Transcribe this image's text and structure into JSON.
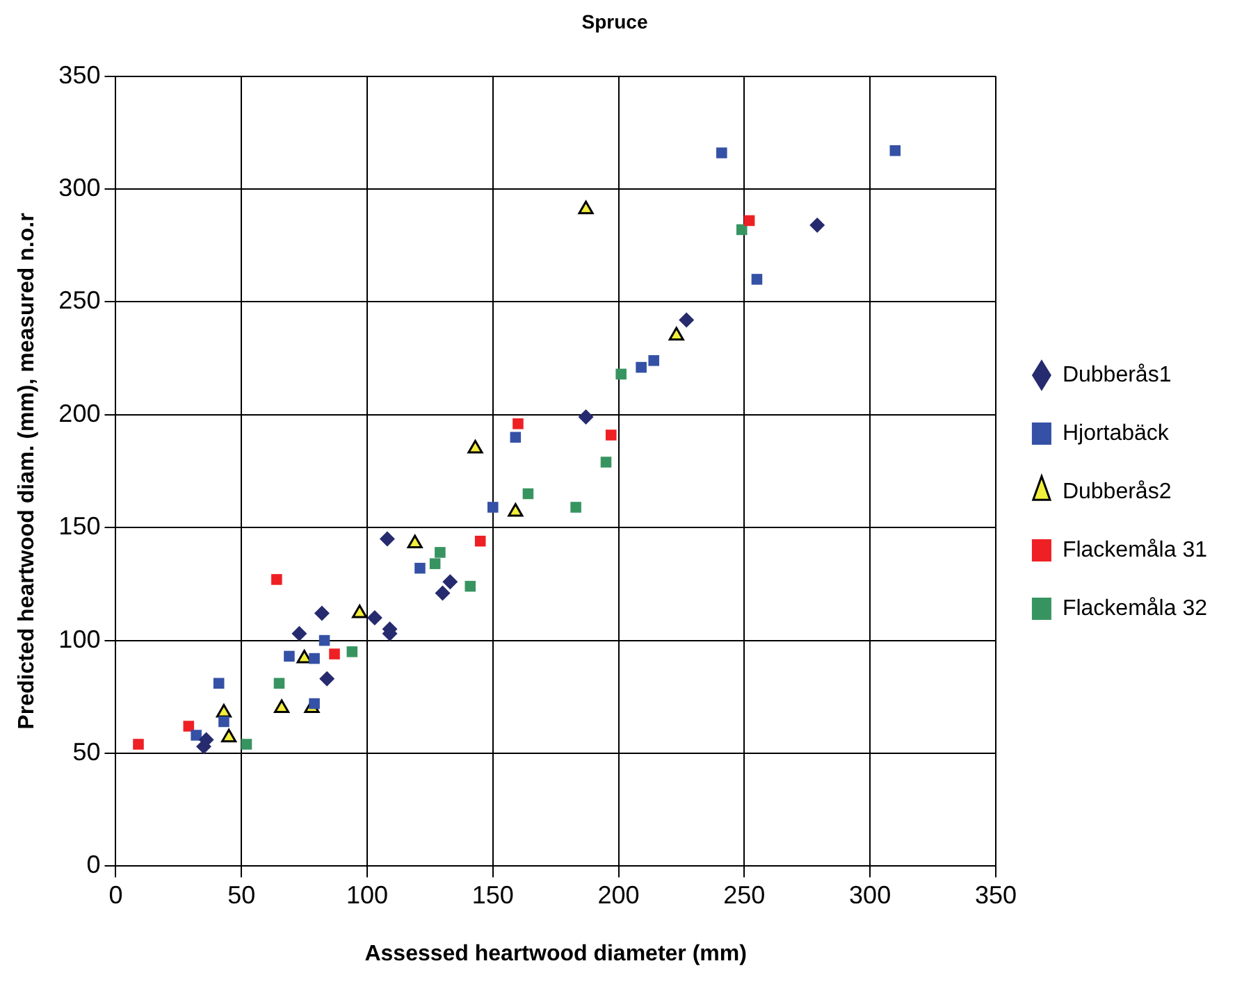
{
  "chart_data": {
    "type": "scatter",
    "title": "Spruce",
    "xlabel": "Assessed heartwood diameter (mm)",
    "ylabel": "Predicted heartwood diam. (mm), measured n.o.r",
    "xlim": [
      0,
      350
    ],
    "ylim": [
      0,
      350
    ],
    "xticks": [
      0,
      50,
      100,
      150,
      200,
      250,
      300,
      350
    ],
    "yticks": [
      0,
      50,
      100,
      150,
      200,
      250,
      300,
      350
    ],
    "grid": true,
    "legend": "right",
    "series": [
      {
        "name": "Dubberås1",
        "color": "#262a6e",
        "marker": "diamond",
        "x": [
          35,
          36,
          73,
          82,
          84,
          103,
          108,
          109,
          109,
          130,
          133,
          187,
          227,
          279
        ],
        "values": [
          53,
          56,
          103,
          112,
          83,
          110,
          145,
          105,
          103,
          121,
          126,
          199,
          242,
          284
        ]
      },
      {
        "name": "Hjortabäck",
        "color": "#3451a6",
        "marker": "square",
        "x": [
          32,
          41,
          43,
          69,
          79,
          79,
          83,
          121,
          150,
          159,
          209,
          214,
          241,
          255,
          310
        ],
        "values": [
          58,
          81,
          64,
          93,
          92,
          72,
          100,
          132,
          159,
          190,
          221,
          224,
          316,
          260,
          317
        ]
      },
      {
        "name": "Dubberås2",
        "color": "#f2ee3c",
        "marker": "triangle",
        "x": [
          43,
          45,
          66,
          75,
          78,
          97,
          119,
          143,
          159,
          187,
          223
        ],
        "values": [
          68,
          57,
          70,
          92,
          70,
          112,
          143,
          185,
          157,
          291,
          235
        ]
      },
      {
        "name": "Flackemåla 31",
        "color": "#ee2024",
        "marker": "square",
        "x": [
          9,
          29,
          64,
          87,
          145,
          160,
          197,
          252
        ],
        "values": [
          54,
          62,
          127,
          94,
          144,
          196,
          191,
          286
        ]
      },
      {
        "name": "Flackemåla 32",
        "color": "#379461",
        "marker": "square",
        "x": [
          52,
          65,
          94,
          127,
          129,
          141,
          164,
          183,
          195,
          201,
          249
        ],
        "values": [
          54,
          81,
          95,
          134,
          139,
          124,
          165,
          159,
          179,
          218,
          282
        ]
      }
    ]
  }
}
